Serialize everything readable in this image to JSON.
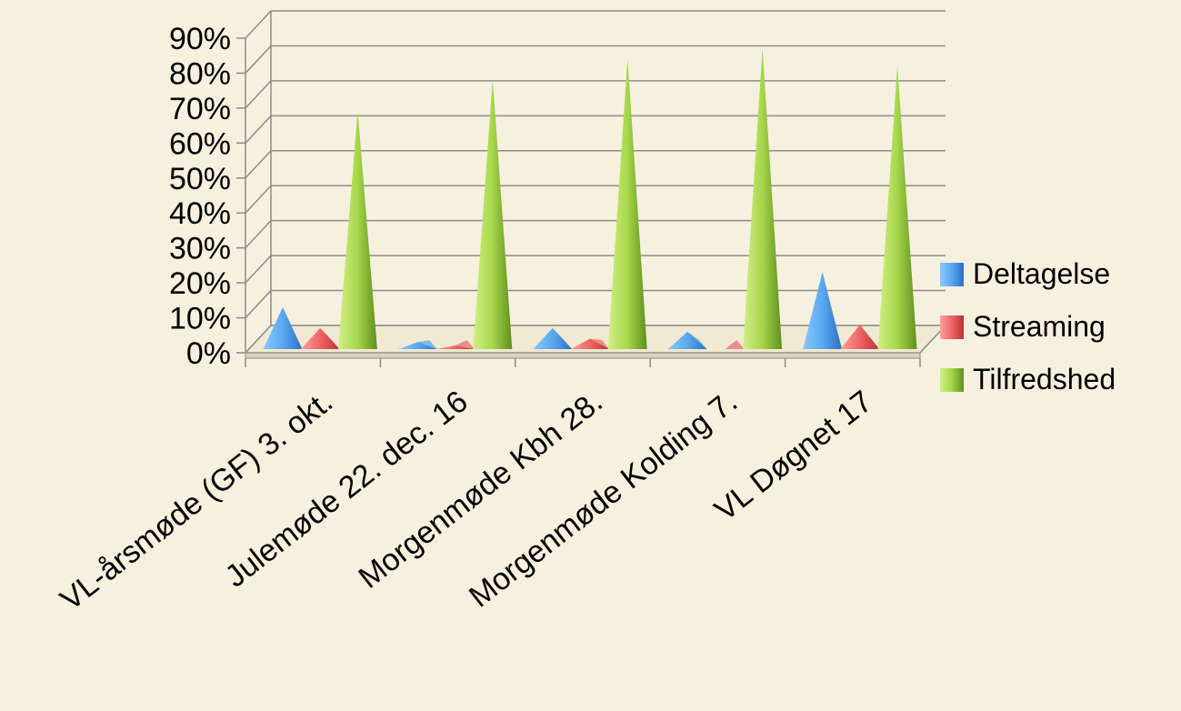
{
  "chart_data": {
    "type": "bar",
    "style": "3d-pyramid",
    "categories": [
      "VL-årsmøde (GF) 3. okt.",
      "Julemøde 22. dec. 16",
      "Morgenmøde Kbh  28.",
      "Morgenmøde Kolding 7.",
      "VL Døgnet 17"
    ],
    "series": [
      {
        "name": "Deltagelse",
        "color": "#4f9ee8",
        "values": [
          12,
          2,
          6,
          5,
          22
        ]
      },
      {
        "name": "Streaming",
        "color": "#e85d5d",
        "values": [
          6,
          1,
          3,
          0,
          7
        ]
      },
      {
        "name": "Tilfredshed",
        "color": "#8fc43a",
        "values": [
          68,
          77,
          83,
          86,
          81
        ]
      }
    ],
    "ylim": [
      0,
      90
    ],
    "yticks": [
      "0%",
      "10%",
      "20%",
      "30%",
      "40%",
      "50%",
      "60%",
      "70%",
      "80%",
      "90%"
    ],
    "grid": true,
    "legend": "right"
  }
}
